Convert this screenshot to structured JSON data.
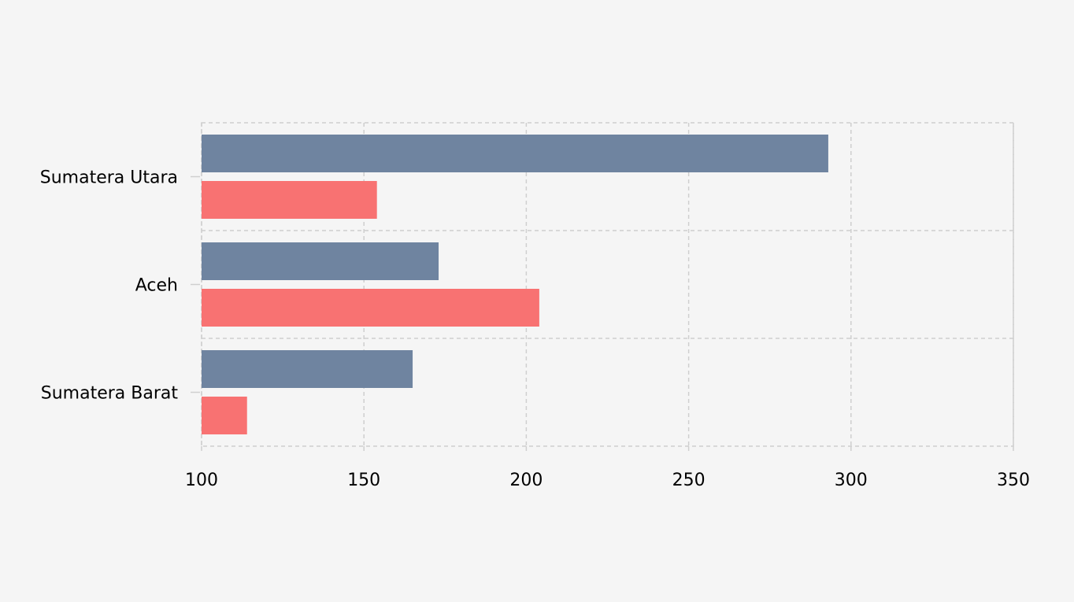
{
  "chart_data": {
    "type": "bar",
    "orientation": "horizontal",
    "categories": [
      "Sumatera Utara",
      "Aceh",
      "Sumatera Barat"
    ],
    "series": [
      {
        "color": "#6f84a0",
        "values": [
          293,
          173,
          165
        ]
      },
      {
        "color": "#f87272",
        "values": [
          154,
          204,
          114
        ]
      }
    ],
    "xlim": [
      100,
      350
    ],
    "xticks": [
      100,
      150,
      200,
      250,
      300,
      350
    ],
    "grid": true,
    "title": "",
    "xlabel": "",
    "ylabel": ""
  }
}
